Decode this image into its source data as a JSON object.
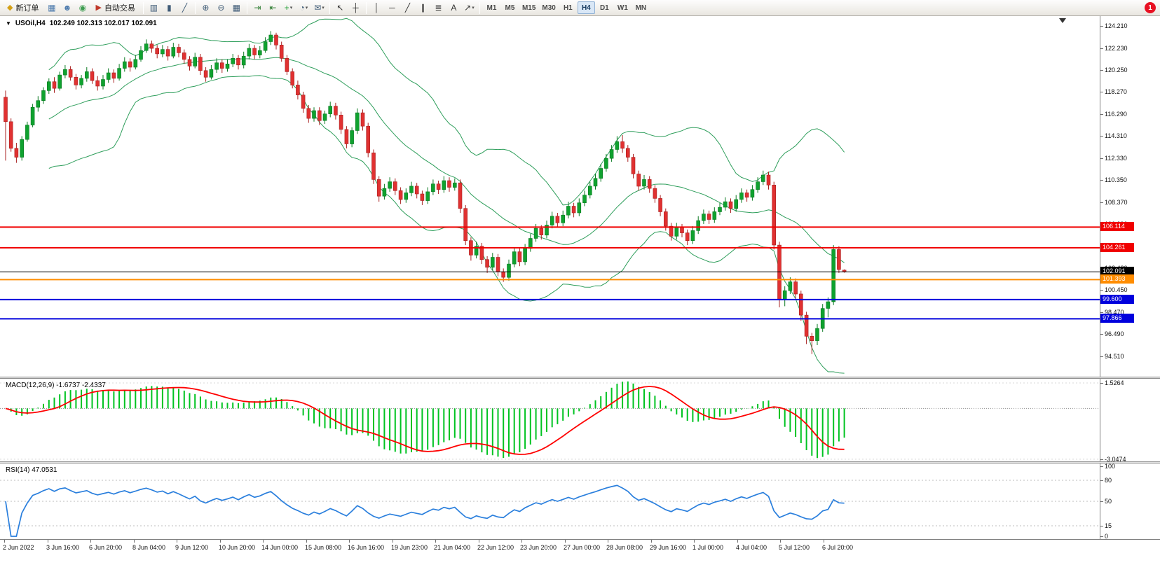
{
  "toolbar": {
    "groups": [
      {
        "items": [
          {
            "name": "new-order-button",
            "label": "新订单",
            "icon": "new-order-icon",
            "glyph": "◆",
            "color": "#d4a017"
          },
          {
            "name": "charts-window-icon",
            "glyph": "▦",
            "color": "#4f7cae"
          },
          {
            "name": "profile-icon",
            "glyph": "☻",
            "color": "#4f7cae"
          },
          {
            "name": "market-watch-icon",
            "glyph": "◉",
            "color": "#3f9e52"
          },
          {
            "name": "autotrading-button",
            "label": "自动交易",
            "icon": "autotrading-icon",
            "glyph": "▶",
            "color": "#c0392b"
          }
        ]
      },
      {
        "items": [
          {
            "name": "bar-chart-icon",
            "glyph": "▥",
            "color": "#3f5b77"
          },
          {
            "name": "candlestick-chart-icon",
            "glyph": "▮",
            "color": "#3f5b77"
          },
          {
            "name": "line-chart-icon",
            "glyph": "╱",
            "color": "#3f5b77"
          }
        ]
      },
      {
        "items": [
          {
            "name": "zoom-in-icon",
            "glyph": "⊕",
            "color": "#3f5b77"
          },
          {
            "name": "zoom-out-icon",
            "glyph": "⊖",
            "color": "#3f5b77"
          },
          {
            "name": "tile-windows-icon",
            "glyph": "▦",
            "color": "#3f5b77"
          }
        ]
      },
      {
        "items": [
          {
            "name": "auto-scroll-icon",
            "glyph": "⇥",
            "color": "#2e7d32"
          },
          {
            "name": "chart-shift-icon",
            "glyph": "⇤",
            "color": "#2e7d32"
          },
          {
            "name": "add-indicator-icon",
            "glyph": "+",
            "color": "#1d9e33",
            "caret": true
          },
          {
            "name": "period-icon",
            "glyph": "◔",
            "color": "#3f5b77",
            "caret": true
          },
          {
            "name": "template-icon",
            "glyph": "✉",
            "color": "#3f5b77",
            "caret": true
          }
        ]
      },
      {
        "items": [
          {
            "name": "cursor-icon",
            "glyph": "↖",
            "color": "#333333"
          },
          {
            "name": "crosshair-icon",
            "glyph": "┼",
            "color": "#333333"
          }
        ]
      },
      {
        "items": [
          {
            "name": "vertical-line-icon",
            "glyph": "│",
            "color": "#333333"
          },
          {
            "name": "horizontal-line-icon",
            "glyph": "─",
            "color": "#333333"
          },
          {
            "name": "trendline-icon",
            "glyph": "╱",
            "color": "#333333"
          },
          {
            "name": "channel-icon",
            "glyph": "∥",
            "color": "#333333"
          },
          {
            "name": "fibonacci-icon",
            "glyph": "≣",
            "color": "#333333"
          },
          {
            "name": "text-icon",
            "glyph": "A",
            "color": "#333333"
          },
          {
            "name": "arrows-icon",
            "glyph": "↗",
            "color": "#333333",
            "caret": true
          }
        ]
      }
    ],
    "timeframes": [
      "M1",
      "M5",
      "M15",
      "M30",
      "H1",
      "H4",
      "D1",
      "W1",
      "MN"
    ],
    "active_timeframe": "H4",
    "notification_badge": "1"
  },
  "chart": {
    "collapse_icon": "▼",
    "title_symbol": "USOil,H4",
    "title_ohlc": "102.249 102.313 102.017 102.091",
    "colors": {
      "up": "#0fa22f",
      "up_edge": "#0a7a22",
      "down": "#e03131",
      "down_edge": "#a82020",
      "bollinger": "#2e9e5b",
      "background": "#ffffff"
    },
    "price_axis": [
      "124.210",
      "122.230",
      "120.250",
      "118.270",
      "116.290",
      "114.310",
      "112.330",
      "110.350",
      "108.370",
      "106.390",
      "104.410",
      "102.430",
      "100.450",
      "98.470",
      "96.490",
      "94.510"
    ],
    "hlines": [
      {
        "price": 106.114,
        "label": "106.114",
        "color": "#f00000",
        "width": 2
      },
      {
        "price": 104.261,
        "label": "104.261",
        "color": "#f00000",
        "width": 2
      },
      {
        "price": 102.091,
        "label": "102.091",
        "color": "#000000",
        "width": 1
      },
      {
        "price": 101.393,
        "label": "101.393",
        "color": "#ff8d00",
        "width": 2
      },
      {
        "price": 99.6,
        "label": "99.600",
        "color": "#0000dd",
        "width": 2
      },
      {
        "price": 97.866,
        "label": "97.866",
        "color": "#0000dd",
        "width": 2
      }
    ],
    "time_axis": [
      "2 Jun 2022",
      "3 Jun 16:00",
      "6 Jun 20:00",
      "8 Jun 04:00",
      "9 Jun 12:00",
      "10 Jun 20:00",
      "14 Jun 00:00",
      "15 Jun 08:00",
      "16 Jun 16:00",
      "19 Jun 23:00",
      "21 Jun 04:00",
      "22 Jun 12:00",
      "23 Jun 20:00",
      "27 Jun 00:00",
      "28 Jun 08:00",
      "29 Jun 16:00",
      "1 Jul 00:00",
      "4 Jul 04:00",
      "5 Jul 12:00",
      "6 Jul 20:00"
    ]
  },
  "macd": {
    "label": "MACD(12,26,9) -1.6737 -2.4337",
    "scale": [
      "1.5264",
      "-3.0474"
    ],
    "hist_color": "#00c322",
    "signal_color": "#ff0000"
  },
  "rsi": {
    "label": "RSI(14) 47.0531",
    "scale": [
      "100",
      "80",
      "50",
      "15",
      "0"
    ],
    "levels": [
      80,
      50,
      15
    ],
    "line_color": "#2a7fdd"
  },
  "chart_data": {
    "type": "candlestick",
    "symbol": "USOil",
    "timeframe": "H4",
    "visible_last_bar": {
      "open": 102.249,
      "high": 102.313,
      "low": 102.017,
      "close": 102.091
    },
    "indicators": {
      "bollinger_period": 20,
      "bollinger_deviation": 2,
      "macd": [
        12,
        26,
        9
      ],
      "rsi_period": 14
    },
    "candles": [
      [
        117.8,
        118.4,
        112.1,
        115.6
      ],
      [
        115.6,
        115.9,
        112.9,
        113.2
      ],
      [
        113.2,
        113.7,
        111.9,
        112.4
      ],
      [
        112.4,
        114.3,
        112.1,
        114.0
      ],
      [
        114.0,
        115.6,
        113.8,
        115.3
      ],
      [
        115.3,
        117.2,
        115.1,
        116.9
      ],
      [
        116.9,
        117.9,
        116.5,
        117.5
      ],
      [
        117.5,
        118.7,
        117.2,
        118.4
      ],
      [
        118.4,
        119.5,
        118.1,
        119.2
      ],
      [
        119.2,
        119.6,
        118.2,
        118.6
      ],
      [
        118.6,
        120.1,
        118.4,
        119.8
      ],
      [
        119.8,
        120.7,
        119.5,
        120.3
      ],
      [
        120.3,
        120.6,
        119.3,
        119.6
      ],
      [
        119.6,
        119.9,
        118.5,
        118.9
      ],
      [
        118.9,
        119.8,
        118.6,
        119.5
      ],
      [
        119.5,
        120.5,
        119.2,
        120.1
      ],
      [
        120.1,
        120.4,
        119.0,
        119.3
      ],
      [
        119.3,
        119.7,
        118.4,
        118.8
      ],
      [
        118.8,
        119.8,
        118.5,
        119.4
      ],
      [
        119.4,
        120.4,
        119.1,
        120.0
      ],
      [
        120.0,
        120.3,
        119.1,
        119.5
      ],
      [
        119.5,
        120.8,
        119.3,
        120.4
      ],
      [
        120.4,
        121.4,
        120.1,
        121.0
      ],
      [
        121.0,
        121.3,
        120.1,
        120.5
      ],
      [
        120.5,
        121.6,
        120.3,
        121.2
      ],
      [
        121.2,
        122.4,
        121.0,
        122.0
      ],
      [
        122.0,
        123.0,
        121.8,
        122.6
      ],
      [
        122.6,
        122.9,
        121.8,
        122.2
      ],
      [
        122.2,
        122.5,
        121.3,
        121.7
      ],
      [
        121.7,
        122.5,
        121.4,
        122.1
      ],
      [
        122.1,
        122.4,
        121.1,
        121.5
      ],
      [
        121.5,
        122.7,
        121.3,
        122.3
      ],
      [
        122.3,
        122.6,
        121.4,
        121.8
      ],
      [
        121.8,
        122.1,
        120.8,
        121.2
      ],
      [
        121.2,
        121.5,
        120.2,
        120.6
      ],
      [
        120.6,
        121.8,
        120.4,
        121.4
      ],
      [
        121.4,
        121.7,
        119.8,
        120.2
      ],
      [
        120.2,
        120.5,
        119.2,
        119.6
      ],
      [
        119.6,
        120.7,
        119.4,
        120.3
      ],
      [
        120.3,
        121.3,
        120.0,
        120.9
      ],
      [
        120.9,
        121.2,
        120.0,
        120.4
      ],
      [
        120.4,
        121.2,
        120.1,
        120.8
      ],
      [
        120.8,
        121.7,
        120.5,
        121.3
      ],
      [
        121.3,
        121.6,
        120.3,
        120.7
      ],
      [
        120.7,
        121.9,
        120.4,
        121.5
      ],
      [
        121.5,
        122.6,
        121.2,
        122.2
      ],
      [
        122.2,
        122.5,
        121.2,
        121.6
      ],
      [
        121.6,
        122.4,
        121.3,
        122.0
      ],
      [
        122.0,
        123.2,
        121.8,
        122.8
      ],
      [
        122.8,
        123.75,
        122.5,
        123.4
      ],
      [
        123.4,
        123.6,
        122.1,
        122.5
      ],
      [
        122.5,
        122.8,
        121.0,
        121.3
      ],
      [
        121.3,
        121.6,
        119.8,
        120.1
      ],
      [
        120.1,
        120.4,
        118.6,
        118.9
      ],
      [
        118.9,
        119.3,
        117.6,
        118.0
      ],
      [
        118.0,
        118.3,
        116.4,
        116.8
      ],
      [
        116.8,
        117.1,
        115.5,
        115.9
      ],
      [
        115.9,
        116.9,
        115.6,
        116.6
      ],
      [
        116.6,
        116.9,
        115.3,
        115.7
      ],
      [
        115.7,
        116.6,
        115.4,
        116.3
      ],
      [
        116.3,
        117.4,
        116.0,
        117.0
      ],
      [
        117.0,
        117.3,
        115.8,
        116.2
      ],
      [
        116.2,
        116.5,
        114.5,
        114.9
      ],
      [
        114.9,
        115.2,
        113.2,
        113.6
      ],
      [
        113.6,
        115.1,
        113.3,
        114.8
      ],
      [
        114.8,
        116.8,
        114.5,
        116.4
      ],
      [
        116.4,
        116.7,
        114.8,
        115.2
      ],
      [
        115.2,
        115.5,
        112.4,
        112.8
      ],
      [
        112.8,
        113.1,
        110.0,
        110.4
      ],
      [
        110.4,
        110.7,
        108.4,
        108.9
      ],
      [
        108.9,
        110.0,
        108.6,
        109.6
      ],
      [
        109.6,
        110.6,
        109.3,
        110.2
      ],
      [
        110.2,
        110.5,
        109.0,
        109.4
      ],
      [
        109.4,
        109.7,
        108.2,
        108.6
      ],
      [
        108.6,
        109.6,
        108.3,
        109.2
      ],
      [
        109.2,
        110.2,
        108.9,
        109.8
      ],
      [
        109.8,
        110.1,
        108.7,
        109.1
      ],
      [
        109.1,
        109.4,
        108.1,
        108.5
      ],
      [
        108.5,
        109.7,
        108.2,
        109.3
      ],
      [
        109.3,
        110.4,
        109.0,
        110.0
      ],
      [
        110.0,
        110.3,
        109.1,
        109.5
      ],
      [
        109.5,
        110.7,
        109.2,
        110.3
      ],
      [
        110.3,
        110.6,
        109.3,
        109.7
      ],
      [
        109.7,
        110.5,
        109.4,
        110.1
      ],
      [
        110.1,
        110.4,
        107.4,
        107.8
      ],
      [
        107.8,
        108.1,
        104.5,
        104.9
      ],
      [
        104.9,
        105.2,
        103.1,
        103.6
      ],
      [
        103.6,
        104.8,
        103.3,
        104.4
      ],
      [
        104.4,
        104.7,
        102.8,
        103.2
      ],
      [
        103.2,
        103.5,
        102.0,
        102.5
      ],
      [
        102.5,
        103.8,
        102.2,
        103.4
      ],
      [
        103.4,
        103.7,
        101.7,
        102.1
      ],
      [
        102.1,
        102.4,
        101.2,
        101.6
      ],
      [
        101.6,
        103.2,
        101.3,
        102.8
      ],
      [
        102.8,
        104.3,
        102.5,
        103.9
      ],
      [
        103.9,
        104.2,
        102.6,
        103.0
      ],
      [
        103.0,
        104.6,
        102.7,
        104.2
      ],
      [
        104.2,
        105.5,
        103.9,
        105.1
      ],
      [
        105.1,
        106.4,
        104.8,
        106.0
      ],
      [
        106.0,
        106.3,
        105.0,
        105.4
      ],
      [
        105.4,
        106.7,
        105.1,
        106.3
      ],
      [
        106.3,
        107.5,
        106.0,
        107.1
      ],
      [
        107.1,
        107.4,
        106.1,
        106.5
      ],
      [
        106.5,
        107.6,
        106.2,
        107.2
      ],
      [
        107.2,
        108.4,
        106.9,
        108.0
      ],
      [
        108.0,
        108.3,
        107.0,
        107.4
      ],
      [
        107.4,
        108.7,
        107.1,
        108.3
      ],
      [
        108.3,
        109.4,
        108.0,
        109.0
      ],
      [
        109.0,
        110.2,
        108.7,
        109.8
      ],
      [
        109.8,
        110.9,
        109.5,
        110.5
      ],
      [
        110.5,
        111.8,
        110.2,
        111.4
      ],
      [
        111.4,
        112.7,
        111.1,
        112.3
      ],
      [
        112.3,
        113.5,
        112.0,
        113.1
      ],
      [
        113.1,
        114.3,
        112.8,
        113.8
      ],
      [
        113.8,
        114.4,
        112.8,
        113.2
      ],
      [
        113.2,
        113.5,
        112.0,
        112.4
      ],
      [
        112.4,
        112.7,
        110.5,
        110.9
      ],
      [
        110.9,
        111.2,
        109.4,
        109.8
      ],
      [
        109.8,
        110.8,
        109.5,
        110.4
      ],
      [
        110.4,
        110.7,
        109.2,
        109.6
      ],
      [
        109.6,
        109.9,
        108.3,
        108.7
      ],
      [
        108.7,
        109.0,
        107.1,
        107.5
      ],
      [
        107.5,
        107.8,
        105.8,
        106.2
      ],
      [
        106.2,
        106.5,
        104.9,
        105.3
      ],
      [
        105.3,
        106.5,
        105.0,
        106.1
      ],
      [
        106.1,
        106.4,
        105.2,
        105.6
      ],
      [
        105.6,
        105.9,
        104.5,
        104.9
      ],
      [
        104.9,
        106.2,
        104.6,
        105.8
      ],
      [
        105.8,
        107.1,
        105.5,
        106.7
      ],
      [
        106.7,
        107.7,
        106.4,
        107.3
      ],
      [
        107.3,
        107.6,
        106.4,
        106.8
      ],
      [
        106.8,
        107.9,
        106.5,
        107.5
      ],
      [
        107.5,
        108.3,
        107.2,
        107.9
      ],
      [
        107.9,
        108.8,
        107.6,
        108.4
      ],
      [
        108.4,
        108.7,
        107.4,
        107.8
      ],
      [
        107.8,
        109.0,
        107.5,
        108.6
      ],
      [
        108.6,
        109.6,
        108.3,
        109.2
      ],
      [
        109.2,
        109.5,
        108.4,
        108.8
      ],
      [
        108.8,
        109.9,
        108.5,
        109.5
      ],
      [
        109.5,
        110.6,
        109.2,
        110.2
      ],
      [
        110.2,
        111.2,
        109.9,
        110.8
      ],
      [
        110.8,
        111.1,
        109.5,
        109.9
      ],
      [
        109.9,
        110.2,
        104.1,
        104.5
      ],
      [
        104.5,
        104.8,
        98.9,
        99.6
      ],
      [
        99.6,
        100.8,
        99.0,
        100.4
      ],
      [
        100.4,
        101.6,
        100.1,
        101.2
      ],
      [
        101.2,
        101.5,
        99.7,
        100.1
      ],
      [
        100.1,
        100.4,
        97.7,
        98.2
      ],
      [
        98.2,
        98.5,
        95.6,
        96.3
      ],
      [
        96.3,
        96.6,
        94.7,
        95.9
      ],
      [
        95.9,
        97.4,
        95.5,
        97.0
      ],
      [
        97.0,
        99.2,
        96.7,
        98.8
      ],
      [
        98.8,
        99.8,
        98.0,
        99.4
      ],
      [
        99.4,
        104.5,
        99.1,
        104.1
      ],
      [
        104.1,
        104.4,
        102.0,
        102.3
      ],
      [
        102.25,
        102.313,
        102.017,
        102.091
      ]
    ]
  }
}
